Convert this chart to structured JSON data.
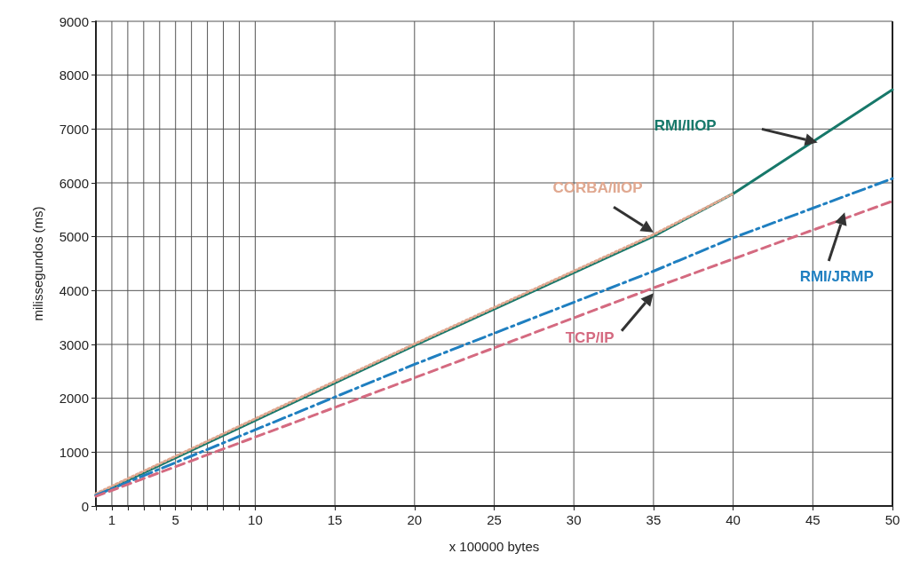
{
  "chart_data": {
    "type": "line",
    "xlabel": "x 100000 bytes",
    "ylabel": "milissegundos (ms)",
    "xlim": [
      0,
      50
    ],
    "ylim": [
      0,
      9000
    ],
    "xticks": [
      {
        "value": 0,
        "label": null
      },
      1,
      {
        "value": 2,
        "label": null
      },
      {
        "value": 3,
        "label": null
      },
      {
        "value": 4,
        "label": null
      },
      5,
      {
        "value": 6,
        "label": null
      },
      {
        "value": 7,
        "label": null
      },
      {
        "value": 8,
        "label": null
      },
      {
        "value": 9,
        "label": null
      },
      10,
      15,
      20,
      25,
      30,
      35,
      40,
      45,
      50
    ],
    "yticks": [
      0,
      1000,
      2000,
      3000,
      4000,
      5000,
      6000,
      7000,
      8000,
      9000
    ],
    "grid": true,
    "marker": "none",
    "series": [
      {
        "name": "RMI/IIOP",
        "color": "#17786a",
        "line_style": "solid",
        "x": [
          0,
          20,
          35,
          40,
          50
        ],
        "values": [
          200,
          2980,
          5010,
          5800,
          7730
        ]
      },
      {
        "name": "CORBA/IIOP",
        "color": "#e0a890",
        "line_style": "dotted",
        "x": [
          0,
          20,
          35,
          40
        ],
        "values": [
          230,
          3010,
          5040,
          5800
        ]
      },
      {
        "name": "RMI/JRMP",
        "color": "#1f7fc0",
        "line_style": "dashdot",
        "x": [
          0,
          20,
          35,
          40,
          50
        ],
        "values": [
          200,
          2630,
          4360,
          4980,
          6080
        ]
      },
      {
        "name": "TCP/IP",
        "color": "#d46a80",
        "line_style": "dashed",
        "x": [
          0,
          20,
          35,
          50
        ],
        "values": [
          180,
          2380,
          4050,
          5660
        ]
      }
    ]
  }
}
